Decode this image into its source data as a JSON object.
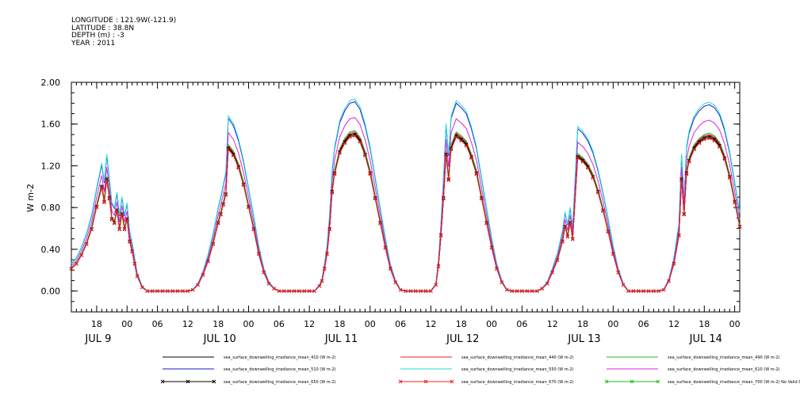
{
  "header": {
    "longitude": "LONGITUDE : 121.9W(-121.9)",
    "latitude": "LATITUDE : 38.8N",
    "depth": "DEPTH (m) : -3",
    "year": "YEAR : 2011"
  },
  "chart_data": {
    "type": "line",
    "ylabel": "W m-2",
    "ylim": [
      -0.2,
      2.0
    ],
    "yticks": [
      "0.00",
      "0.40",
      "0.80",
      "1.20",
      "1.60",
      "2.00"
    ],
    "ytick_values": [
      0.0,
      0.4,
      0.8,
      1.2,
      1.6,
      2.0
    ],
    "x_unit": "hours since JUL 9 00:00 (2011)",
    "xlim": [
      -11,
      121
    ],
    "hour_ticks": [
      "18",
      "00",
      "06",
      "12",
      "18",
      "00",
      "06",
      "12",
      "18",
      "00",
      "06",
      "12",
      "18",
      "00",
      "06",
      "12",
      "18",
      "00",
      "06",
      "12",
      "18",
      "00"
    ],
    "date_labels": [
      "JUL  9",
      "JUL 10",
      "JUL 11",
      "JUL 12",
      "JUL 13",
      "JUL 14"
    ],
    "grid": false,
    "legend_position": "bottom",
    "series": [
      {
        "name": "sea_surface_downwelling_irradiance_mean_410 (W m-2)",
        "color": "#000000",
        "scale": 1.2,
        "marker": "none"
      },
      {
        "name": "sea_surface_downwelling_irradiance_mean_440 (W m-2)",
        "color": "#ee2222",
        "scale": 1.21,
        "marker": "none"
      },
      {
        "name": "sea_surface_downwelling_irradiance_mean_490 (W m-2)",
        "color": "#22bb22",
        "scale": 1.22,
        "marker": "none"
      },
      {
        "name": "sea_surface_downwelling_irradiance_mean_510 (W m-2)",
        "color": "#1a1acc",
        "scale": 1.44,
        "marker": "none"
      },
      {
        "name": "sea_surface_downwelling_irradiance_mean_550 (W m-2)",
        "color": "#22dddd",
        "scale": 1.46,
        "marker": "none"
      },
      {
        "name": "sea_surface_downwelling_irradiance_mean_610 (W m-2)",
        "color": "#dd22dd",
        "scale": 1.32,
        "marker": "none"
      },
      {
        "name": "sea_surface_downwelling_irradiance_mean_650 (W m-2)",
        "color": "#000000",
        "scale": 1.19,
        "marker": "x"
      },
      {
        "name": "sea_surface_downwelling_irradiance_mean_670 (W m-2)",
        "color": "#ee2222",
        "scale": 1.18,
        "marker": "x"
      },
      {
        "name": "sea_surface_downwelling_irradiance_mean_700 (W m-2) No Valid Data",
        "color": "#22bb22",
        "scale": 0,
        "marker": "x"
      }
    ],
    "base_profile": {
      "x": [
        -11,
        -10,
        -9,
        -8,
        -7,
        -6,
        -5,
        -4.5,
        -4,
        -3.5,
        -3,
        -2.5,
        -2,
        -1.5,
        -1,
        -0.5,
        0,
        0.5,
        1,
        1.5,
        2,
        3,
        4,
        5,
        6,
        7,
        8,
        9,
        10,
        11,
        12,
        13,
        14,
        15,
        16,
        17,
        18,
        18.5,
        19,
        19.5,
        20,
        21,
        22,
        23,
        24,
        25,
        26,
        27,
        28,
        29,
        30,
        31,
        32,
        33,
        34,
        35,
        36,
        37,
        38,
        38.5,
        39,
        39.5,
        40,
        40.5,
        41,
        42,
        43,
        44,
        45,
        46,
        47,
        48,
        49,
        50,
        51,
        52,
        53,
        54,
        55,
        56,
        57,
        58,
        59,
        60,
        61,
        61.5,
        62,
        62.5,
        63,
        63.5,
        64,
        65,
        66,
        67,
        68,
        69,
        70,
        71,
        72,
        73,
        74,
        75,
        76,
        77,
        78,
        79,
        80,
        81,
        82,
        83,
        84,
        85,
        86,
        86.5,
        87,
        87.5,
        88,
        89,
        90,
        91,
        92,
        93,
        94,
        95,
        96,
        97,
        98,
        99,
        100,
        101,
        102,
        103,
        104,
        105,
        106,
        107,
        108,
        109,
        109.5,
        110,
        110.5,
        111,
        112,
        113,
        114,
        115,
        116,
        117,
        118,
        119,
        120,
        121
      ],
      "y": [
        0.18,
        0.22,
        0.29,
        0.38,
        0.5,
        0.68,
        0.84,
        0.72,
        0.9,
        0.75,
        0.58,
        0.55,
        0.65,
        0.5,
        0.62,
        0.5,
        0.58,
        0.4,
        0.32,
        0.22,
        0.12,
        0.03,
        0.0,
        0.0,
        0.0,
        0.0,
        0.0,
        0.0,
        0.0,
        0.0,
        0.0,
        0.01,
        0.05,
        0.13,
        0.24,
        0.38,
        0.55,
        0.62,
        0.7,
        0.78,
        1.15,
        1.1,
        1.0,
        0.86,
        0.68,
        0.5,
        0.3,
        0.15,
        0.06,
        0.02,
        0.0,
        0.0,
        0.0,
        0.0,
        0.0,
        0.0,
        0.0,
        0.0,
        0.04,
        0.08,
        0.18,
        0.3,
        0.5,
        0.8,
        0.95,
        1.12,
        1.2,
        1.25,
        1.26,
        1.21,
        1.1,
        0.95,
        0.75,
        0.55,
        0.35,
        0.18,
        0.07,
        0.01,
        0.0,
        0.0,
        0.0,
        0.0,
        0.0,
        0.0,
        0.05,
        0.2,
        0.45,
        0.75,
        1.1,
        0.9,
        1.15,
        1.25,
        1.22,
        1.18,
        1.08,
        0.95,
        0.75,
        0.55,
        0.35,
        0.18,
        0.07,
        0.01,
        0.0,
        0.0,
        0.0,
        0.0,
        0.0,
        0.0,
        0.02,
        0.06,
        0.15,
        0.25,
        0.4,
        0.52,
        0.44,
        0.55,
        0.42,
        1.08,
        1.05,
        1.0,
        0.92,
        0.8,
        0.65,
        0.48,
        0.3,
        0.15,
        0.05,
        0.0,
        0.0,
        0.0,
        0.0,
        0.0,
        0.0,
        0.0,
        0.01,
        0.08,
        0.22,
        0.45,
        0.9,
        0.62,
        0.95,
        1.05,
        1.15,
        1.2,
        1.23,
        1.24,
        1.22,
        1.17,
        1.07,
        0.92,
        0.72,
        0.52
      ]
    }
  },
  "legend": [
    {
      "label": "sea_surface_downwelling_irradiance_mean_410 (W m-2)",
      "color": "#000000",
      "marker": "none"
    },
    {
      "label": "sea_surface_downwelling_irradiance_mean_440 (W m-2)",
      "color": "#ee2222",
      "marker": "none"
    },
    {
      "label": "sea_surface_downwelling_irradiance_mean_490 (W m-2)",
      "color": "#22bb22",
      "marker": "none"
    },
    {
      "label": "sea_surface_downwelling_irradiance_mean_510 (W m-2)",
      "color": "#1a1acc",
      "marker": "none"
    },
    {
      "label": "sea_surface_downwelling_irradiance_mean_550 (W m-2)",
      "color": "#22dddd",
      "marker": "none"
    },
    {
      "label": "sea_surface_downwelling_irradiance_mean_610 (W m-2)",
      "color": "#dd22dd",
      "marker": "none"
    },
    {
      "label": "sea_surface_downwelling_irradiance_mean_650 (W m-2)",
      "color": "#000000",
      "marker": "x"
    },
    {
      "label": "sea_surface_downwelling_irradiance_mean_670 (W m-2)",
      "color": "#ee2222",
      "marker": "x"
    },
    {
      "label": "sea_surface_downwelling_irradiance_mean_700 (W m-2) No Valid Data",
      "color": "#22bb22",
      "marker": "x"
    }
  ]
}
